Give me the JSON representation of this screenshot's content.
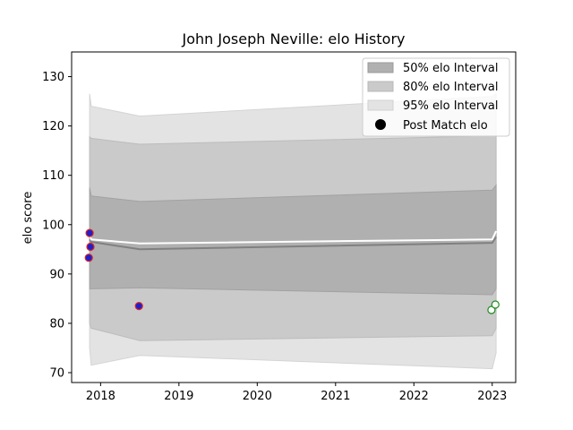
{
  "chart_data": {
    "type": "line",
    "title": "John Joseph Neville: elo History",
    "xlabel": "",
    "ylabel": "elo score",
    "xlim": [
      2017.63,
      2023.3
    ],
    "ylim": [
      68,
      135
    ],
    "x_ticks": [
      2018,
      2019,
      2020,
      2021,
      2022,
      2023
    ],
    "x_tick_labels": [
      "2018",
      "2019",
      "2020",
      "2021",
      "2022",
      "2023"
    ],
    "y_ticks": [
      70,
      80,
      90,
      100,
      110,
      120,
      130
    ],
    "y_tick_labels": [
      "70",
      "80",
      "90",
      "100",
      "110",
      "120",
      "130"
    ],
    "legend_position": "top-right",
    "legend": [
      {
        "label": "50% elo Interval",
        "kind": "patch",
        "color": "#b0b0b0"
      },
      {
        "label": "80% elo Interval",
        "kind": "patch",
        "color": "#cacaca"
      },
      {
        "label": "95% elo Interval",
        "kind": "patch",
        "color": "#e3e3e3"
      },
      {
        "label": "Post Match elo",
        "kind": "marker",
        "color": "#000000"
      }
    ],
    "bands": {
      "x": [
        2017.86,
        2017.88,
        2018.5,
        2023.0,
        2023.05
      ],
      "p95_low": [
        75.0,
        71.5,
        73.5,
        70.8,
        74.0
      ],
      "p95_high": [
        126.5,
        124.0,
        122.0,
        126.0,
        126.5
      ],
      "p80_low": [
        80.0,
        79.0,
        76.5,
        77.5,
        79.0
      ],
      "p80_high": [
        117.8,
        117.5,
        116.3,
        118.0,
        118.0
      ],
      "p50_low": [
        87.0,
        87.0,
        87.2,
        85.8,
        87.0
      ],
      "p50_high": [
        107.5,
        105.8,
        104.7,
        107.0,
        108.0
      ]
    },
    "series": [
      {
        "x": [
          2017.86,
          2017.88,
          2018.5,
          2023.0,
          2023.05
        ],
        "values": [
          97.0,
          96.5,
          95.0,
          96.3,
          97.5
        ],
        "color": "#808080"
      },
      {
        "x": [
          2017.86,
          2017.88,
          2018.5,
          2023.0,
          2023.05
        ],
        "values": [
          98.0,
          97.0,
          96.2,
          97.0,
          98.7
        ],
        "color": "#ffffff"
      }
    ],
    "points": [
      {
        "x": 2017.86,
        "y": 98.3,
        "style": "blue-red"
      },
      {
        "x": 2017.87,
        "y": 95.5,
        "style": "blue-red"
      },
      {
        "x": 2017.85,
        "y": 93.3,
        "style": "blue-red"
      },
      {
        "x": 2018.49,
        "y": 83.5,
        "style": "blue-red"
      },
      {
        "x": 2022.99,
        "y": 82.7,
        "style": "white-green"
      },
      {
        "x": 2023.04,
        "y": 83.8,
        "style": "white-green"
      }
    ]
  }
}
